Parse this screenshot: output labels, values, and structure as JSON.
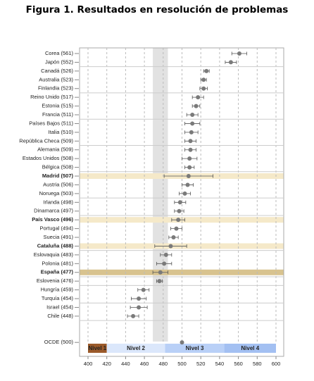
{
  "chart_data": {
    "type": "dot-error",
    "title": "Figura 1. Resultados en resolución de problemas",
    "categories": [
      "Corea (561)",
      "Japón (552)",
      "Canadá (526)",
      "Australia (523)",
      "Finlandia (523)",
      "Reino Unido (517)",
      "Estonia (515)",
      "Francia (511)",
      "Países Bajos (511)",
      "Italia (510)",
      "República Checa (509)",
      "Alemania (509)",
      "Estados Unidos (508)",
      "Bélgica (508)",
      "Madrid (507)",
      "Austria (506)",
      "Noruega (503)",
      "Irlanda (498)",
      "Dinamarca (497)",
      "País Vasco (496)",
      "Portugal (494)",
      "Suecia (491)",
      "Cataluña (488)",
      "Eslovaquia (483)",
      "Polonia (481)",
      "España (477)",
      "Eslovenia (476)",
      "Hungría (459)",
      "Turquía (454)",
      "Israel (454)",
      "Chile (448)",
      "OCDE (500)"
    ],
    "values": [
      561,
      552,
      526,
      523,
      523,
      517,
      515,
      511,
      511,
      510,
      509,
      509,
      508,
      508,
      507,
      506,
      503,
      498,
      497,
      496,
      494,
      491,
      488,
      483,
      481,
      477,
      476,
      459,
      454,
      454,
      448,
      500
    ],
    "errors": [
      8,
      6,
      3,
      3,
      4,
      6,
      4,
      6,
      8,
      7,
      6,
      6,
      8,
      5,
      26,
      6,
      6,
      6,
      5,
      7,
      6,
      5,
      17,
      6,
      8,
      8,
      3,
      6,
      8,
      9,
      6,
      1
    ],
    "highlights": [
      {
        "index": 14,
        "color": "#f5e9c9"
      },
      {
        "index": 19,
        "color": "#f5e9c9"
      },
      {
        "index": 22,
        "color": "#f5e9c9"
      },
      {
        "index": 25,
        "color": "#d8c38f"
      }
    ],
    "band": [
      469,
      485
    ],
    "levels": [
      {
        "label": "Nivel 1",
        "from": 400,
        "to": 420,
        "color": "#9b5a2a"
      },
      {
        "label": "Nivel 2",
        "from": 420,
        "to": 482,
        "color": "#dbe7fb"
      },
      {
        "label": "Nivel 3",
        "from": 482,
        "to": 545,
        "color": "#b9d0f7"
      },
      {
        "label": "Nivel 4",
        "from": 545,
        "to": 600,
        "color": "#a3c0f2"
      }
    ],
    "xlim": [
      400,
      600
    ],
    "xticks": [
      400,
      420,
      440,
      460,
      480,
      500,
      520,
      540,
      560,
      580,
      600
    ],
    "color": "#7a7a7a"
  }
}
